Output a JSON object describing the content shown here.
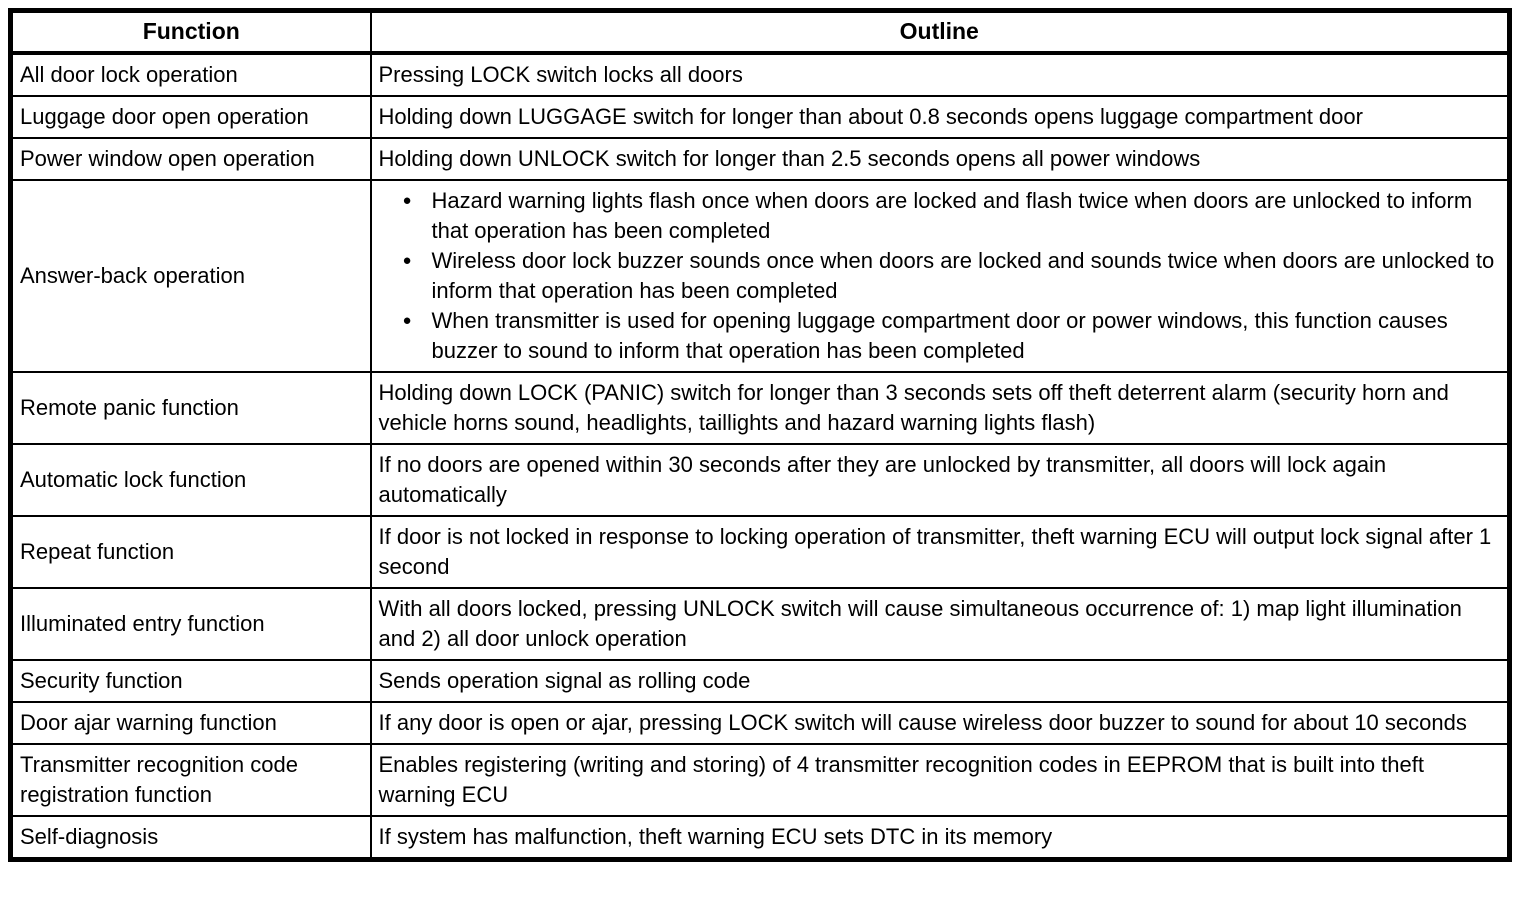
{
  "table": {
    "headers": [
      "Function",
      "Outline"
    ],
    "rows": [
      {
        "function": "All door lock operation",
        "outline_text": "Pressing LOCK switch locks all doors"
      },
      {
        "function": "Luggage door open operation",
        "outline_text": "Holding down LUGGAGE switch for longer than about 0.8 seconds opens luggage compartment door"
      },
      {
        "function": "Power window open operation",
        "outline_text": "Holding down UNLOCK switch for longer than 2.5 seconds opens all power windows"
      },
      {
        "function": "Answer-back operation",
        "outline_bullets": [
          "Hazard warning lights flash once when doors are locked and flash twice when doors are unlocked to inform that operation has been completed",
          "Wireless door lock buzzer sounds once when doors are locked and sounds twice when doors are unlocked to inform that operation has been completed",
          "When transmitter is used for opening luggage compartment door or power windows, this function causes buzzer to sound to inform that operation has been completed"
        ]
      },
      {
        "function": "Remote panic function",
        "outline_text": "Holding down LOCK (PANIC) switch for longer than 3 seconds sets off theft deterrent alarm (security horn and vehicle horns sound, headlights, taillights and hazard warning lights flash)"
      },
      {
        "function": "Automatic lock function",
        "outline_text": "If no doors are opened within 30 seconds after they are unlocked by transmitter, all doors will lock again automatically"
      },
      {
        "function": "Repeat function",
        "outline_text": "If door is not locked in response to locking operation of transmitter, theft warning ECU will output lock signal after 1 second"
      },
      {
        "function": "Illuminated entry function",
        "outline_text": "With all doors locked, pressing UNLOCK switch will cause simultaneous occurrence of: 1) map light illumination and 2) all door unlock operation"
      },
      {
        "function": "Security function",
        "outline_text": "Sends operation signal as rolling code"
      },
      {
        "function": "Door ajar warning function",
        "outline_text": "If any door is open or ajar, pressing LOCK switch will cause wireless door buzzer to sound for about 10 seconds"
      },
      {
        "function": "Transmitter recognition code registration function",
        "outline_text": "Enables registering (writing and storing) of 4 transmitter recognition codes in EEPROM that is built into theft warning ECU"
      },
      {
        "function": "Self-diagnosis",
        "outline_text": "If system has malfunction, theft warning ECU sets DTC in its memory"
      }
    ]
  }
}
